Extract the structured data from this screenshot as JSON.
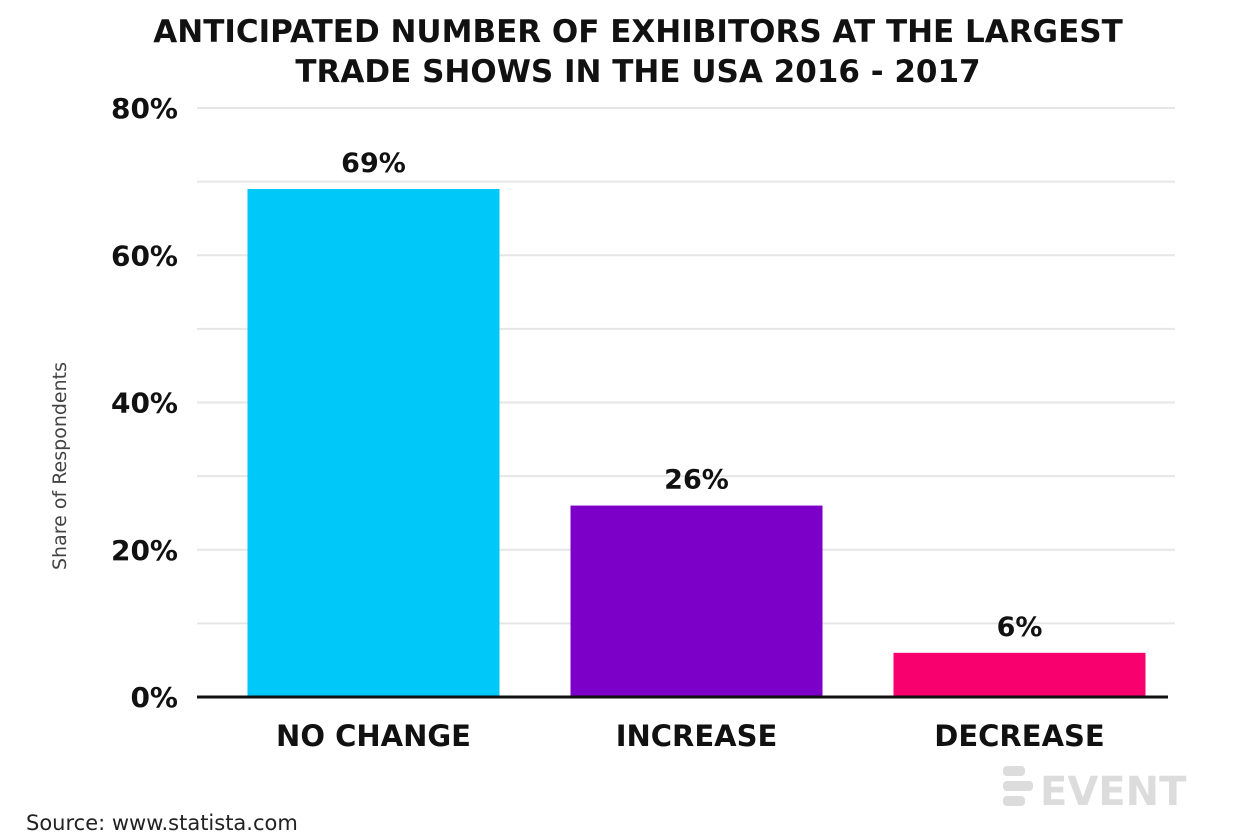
{
  "chart_data": {
    "type": "bar",
    "title": [
      "ANTICIPATED NUMBER OF EXHIBITORS AT THE LARGEST",
      "TRADE SHOWS IN THE USA 2016 - 2017"
    ],
    "xlabel": "",
    "ylabel": "Share of  Respondents",
    "categories": [
      "NO CHANGE",
      "INCREASE",
      "DECREASE"
    ],
    "values": [
      69,
      26,
      6
    ],
    "value_labels": [
      "69%",
      "26%",
      "6%"
    ],
    "ylim": [
      0,
      80
    ],
    "yticks": [
      0,
      20,
      40,
      60,
      80
    ],
    "ytick_labels": [
      "0%",
      "20%",
      "40%",
      "60%",
      "80%"
    ],
    "grid": true,
    "legend": "none",
    "bar_colors": [
      "#00c8f8",
      "#7d00c8",
      "#f8006e"
    ],
    "source": "Source: www.statista.com",
    "logo": {
      "text": "EVENT",
      "icon": "event-manager-blog-logo-icon"
    }
  }
}
